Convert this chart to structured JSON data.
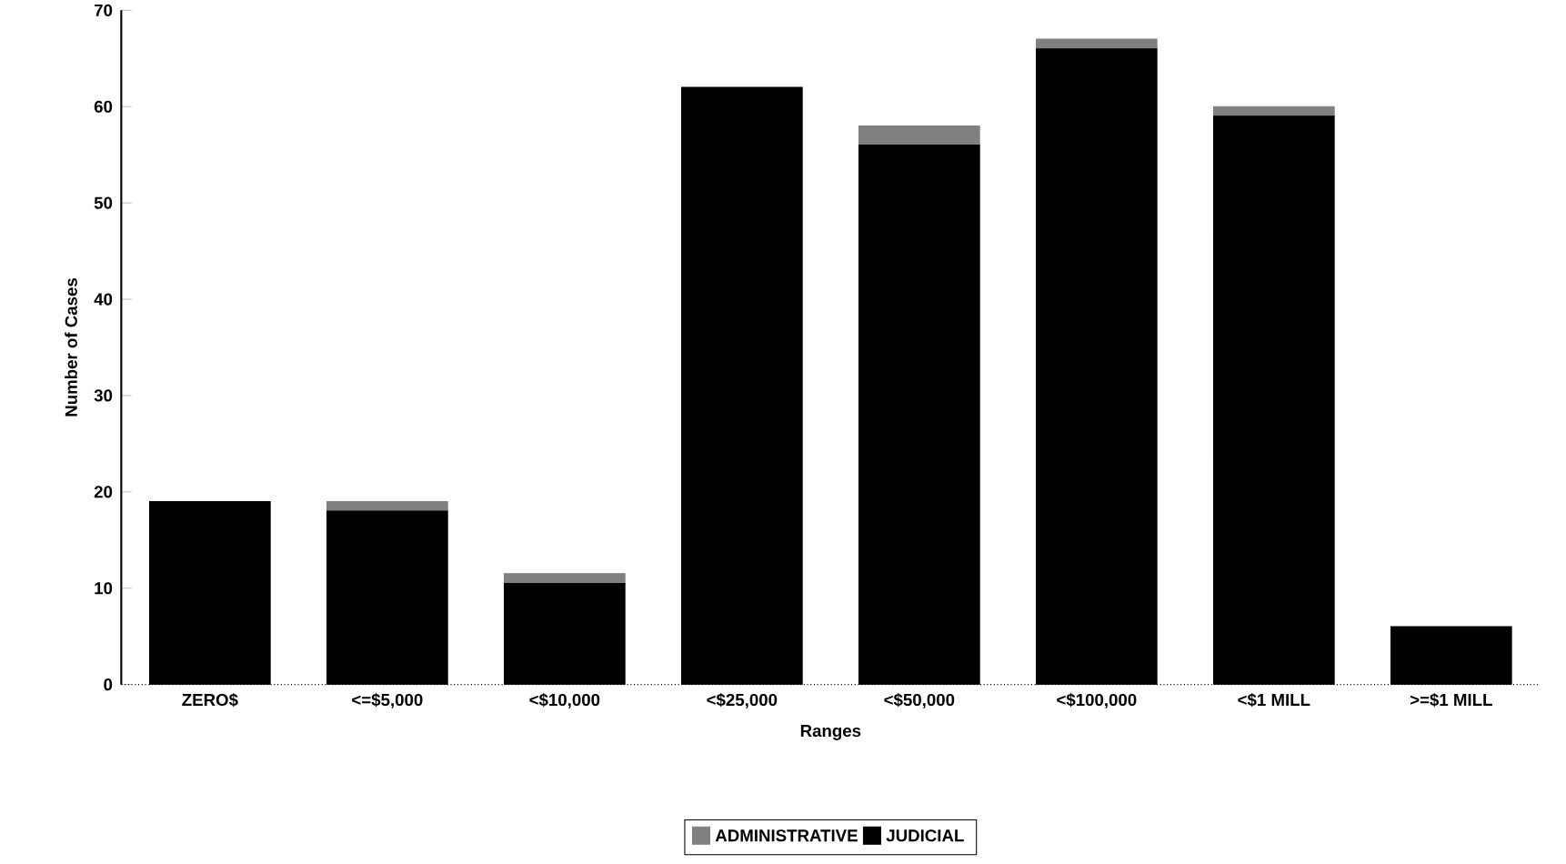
{
  "chart_data": {
    "type": "bar",
    "stacked": true,
    "xlabel": "Ranges",
    "ylabel": "Number of Cases",
    "categories": [
      "ZERO$",
      "<=$5,000",
      "<$10,000",
      "<$25,000",
      "<$50,000",
      "<$100,000",
      "<$1 MILL",
      ">=$1 MILL"
    ],
    "series": [
      {
        "name": "JUDICIAL",
        "color": "#000000",
        "values": [
          19,
          18,
          10.5,
          62,
          56,
          66,
          59,
          6
        ]
      },
      {
        "name": "ADMINISTRATIVE",
        "color": "#808080",
        "values": [
          0,
          1,
          1,
          0,
          2,
          1,
          1,
          0
        ]
      }
    ],
    "ylim": [
      0,
      70
    ],
    "yticks": [
      0,
      10,
      20,
      30,
      40,
      50,
      60,
      70
    ],
    "grid": false,
    "legend": "bottom"
  }
}
